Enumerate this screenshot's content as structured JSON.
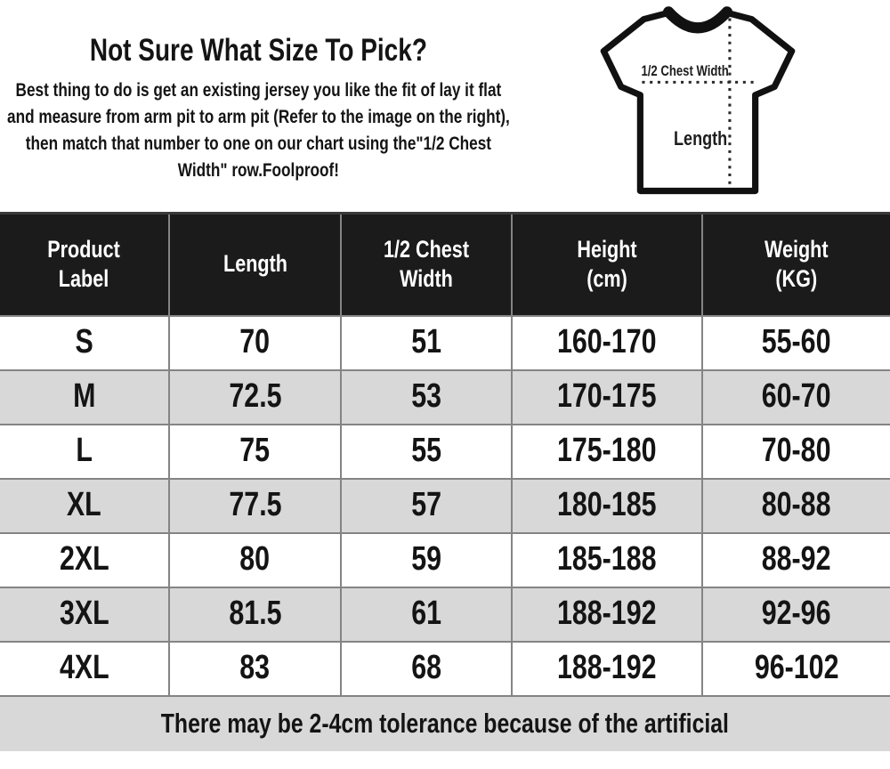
{
  "intro": {
    "title": "Not Sure What Size To Pick?",
    "body": "Best thing to do is get an existing jersey you like the fit of lay it flat and measure from arm pit to arm pit (Refer to the image on the right), then match that number to one on our chart using the\"1/2 Chest Width\" row.Foolproof!"
  },
  "diagram": {
    "chest_label": "1/2 Chest Width",
    "length_label": "Length"
  },
  "size_table": {
    "columns": [
      "Product\nLabel",
      "Length",
      "1/2 Chest Width",
      "Height\n(cm)",
      "Weight\n(KG)"
    ],
    "rows": [
      [
        "S",
        "70",
        "51",
        "160-170",
        "55-60"
      ],
      [
        "M",
        "72.5",
        "53",
        "170-175",
        "60-70"
      ],
      [
        "L",
        "75",
        "55",
        "175-180",
        "70-80"
      ],
      [
        "XL",
        "77.5",
        "57",
        "180-185",
        "80-88"
      ],
      [
        "2XL",
        "80",
        "59",
        "185-188",
        "88-92"
      ],
      [
        "3XL",
        "81.5",
        "61",
        "188-192",
        "92-96"
      ],
      [
        "4XL",
        "83",
        "68",
        "188-192",
        "96-102"
      ]
    ],
    "footer": "There may be 2-4cm tolerance because of the artificial"
  },
  "colors": {
    "header_bg": "#1b1b1b",
    "alt_row_bg": "#d8d8d8",
    "grid_border": "#848484",
    "text": "#141414"
  }
}
